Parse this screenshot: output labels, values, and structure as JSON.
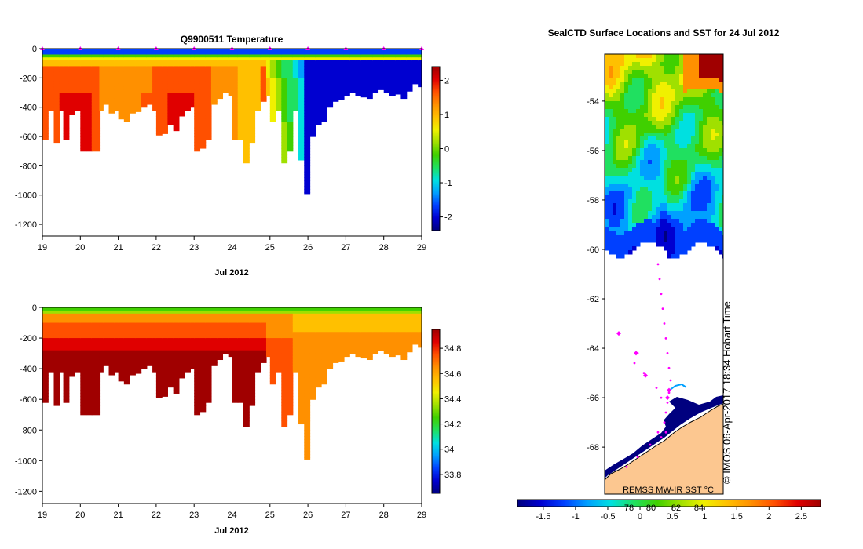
{
  "colors": {
    "scale": [
      "#00007f",
      "#0000d0",
      "#0040ff",
      "#00a0ff",
      "#00e0e0",
      "#20e060",
      "#40d000",
      "#a0e000",
      "#f0f000",
      "#ffc000",
      "#ff9000",
      "#ff5000",
      "#e00000",
      "#a00000"
    ],
    "land": "#fcc790",
    "track": "#ff00ff"
  },
  "chart_data": [
    {
      "type": "heatmap",
      "title": "Q9900511  Temperature",
      "xlabel": "Jul 2012",
      "x_ticks": [
        "19",
        "20",
        "21",
        "22",
        "23",
        "24",
        "25",
        "26",
        "27",
        "28",
        "29"
      ],
      "xlim": [
        19,
        29
      ],
      "ylim": [
        -1280,
        0
      ],
      "y_ticks": [
        "0",
        "-200",
        "-400",
        "-600",
        "-800",
        "-1000",
        "-1200"
      ],
      "colorbar": {
        "ticks": [
          "2",
          "1",
          "0",
          "-1",
          "-2"
        ],
        "range": [
          -2.4,
          2.4
        ]
      },
      "profile_markers_day": [
        19,
        20,
        21,
        22,
        23,
        24,
        25,
        26,
        27,
        28,
        29
      ],
      "profiles": [
        {
          "day": 19.0,
          "depth": 620
        },
        {
          "day": 19.15,
          "depth": 420
        },
        {
          "day": 19.3,
          "depth": 640
        },
        {
          "day": 19.45,
          "depth": 420
        },
        {
          "day": 19.55,
          "depth": 620
        },
        {
          "day": 19.7,
          "depth": 450
        },
        {
          "day": 19.85,
          "depth": 420
        },
        {
          "day": 20.0,
          "depth": 700
        },
        {
          "day": 20.15,
          "depth": 700
        },
        {
          "day": 20.3,
          "depth": 700
        },
        {
          "day": 20.5,
          "depth": 420
        },
        {
          "day": 20.6,
          "depth": 380
        },
        {
          "day": 20.75,
          "depth": 440
        },
        {
          "day": 20.9,
          "depth": 420
        },
        {
          "day": 21.0,
          "depth": 480
        },
        {
          "day": 21.15,
          "depth": 500
        },
        {
          "day": 21.3,
          "depth": 440
        },
        {
          "day": 21.45,
          "depth": 430
        },
        {
          "day": 21.6,
          "depth": 400
        },
        {
          "day": 21.75,
          "depth": 380
        },
        {
          "day": 21.9,
          "depth": 420
        },
        {
          "day": 22.0,
          "depth": 590
        },
        {
          "day": 22.15,
          "depth": 580
        },
        {
          "day": 22.3,
          "depth": 520
        },
        {
          "day": 22.45,
          "depth": 560
        },
        {
          "day": 22.6,
          "depth": 460
        },
        {
          "day": 22.75,
          "depth": 420
        },
        {
          "day": 22.9,
          "depth": 400
        },
        {
          "day": 23.0,
          "depth": 700
        },
        {
          "day": 23.15,
          "depth": 680
        },
        {
          "day": 23.3,
          "depth": 620
        },
        {
          "day": 23.45,
          "depth": 380
        },
        {
          "day": 23.6,
          "depth": 340
        },
        {
          "day": 23.75,
          "depth": 300
        },
        {
          "day": 23.9,
          "depth": 320
        },
        {
          "day": 24.0,
          "depth": 620
        },
        {
          "day": 24.15,
          "depth": 620
        },
        {
          "day": 24.3,
          "depth": 780
        },
        {
          "day": 24.45,
          "depth": 640
        },
        {
          "day": 24.6,
          "depth": 420
        },
        {
          "day": 24.75,
          "depth": 360
        },
        {
          "day": 24.9,
          "depth": 320
        },
        {
          "day": 25.0,
          "depth": 500
        },
        {
          "day": 25.15,
          "depth": 420
        },
        {
          "day": 25.3,
          "depth": 780
        },
        {
          "day": 25.45,
          "depth": 700
        },
        {
          "day": 25.6,
          "depth": 420
        },
        {
          "day": 25.75,
          "depth": 760
        },
        {
          "day": 25.9,
          "depth": 990
        },
        {
          "day": 26.05,
          "depth": 600
        },
        {
          "day": 26.2,
          "depth": 520
        },
        {
          "day": 26.35,
          "depth": 500
        },
        {
          "day": 26.5,
          "depth": 400
        },
        {
          "day": 26.65,
          "depth": 360
        },
        {
          "day": 26.8,
          "depth": 350
        },
        {
          "day": 26.95,
          "depth": 320
        },
        {
          "day": 27.1,
          "depth": 300
        },
        {
          "day": 27.25,
          "depth": 320
        },
        {
          "day": 27.4,
          "depth": 330
        },
        {
          "day": 27.55,
          "depth": 340
        },
        {
          "day": 27.7,
          "depth": 300
        },
        {
          "day": 27.85,
          "depth": 280
        },
        {
          "day": 28.0,
          "depth": 300
        },
        {
          "day": 28.15,
          "depth": 320
        },
        {
          "day": 28.3,
          "depth": 310
        },
        {
          "day": 28.45,
          "depth": 340
        },
        {
          "day": 28.6,
          "depth": 290
        },
        {
          "day": 28.75,
          "depth": 240
        },
        {
          "day": 28.9,
          "depth": 260
        }
      ]
    },
    {
      "type": "heatmap",
      "title": "",
      "xlabel": "Jul 2012",
      "x_ticks": [
        "19",
        "20",
        "21",
        "22",
        "23",
        "24",
        "25",
        "26",
        "27",
        "28",
        "29"
      ],
      "xlim": [
        19,
        29
      ],
      "ylim": [
        -1280,
        0
      ],
      "y_ticks": [
        "0",
        "-200",
        "-400",
        "-600",
        "-800",
        "-1000",
        "-1200"
      ],
      "colorbar": {
        "ticks": [
          "34.8",
          "34.6",
          "34.4",
          "34.2",
          "34",
          "33.8"
        ],
        "range": [
          33.65,
          34.95
        ]
      }
    },
    {
      "type": "heatmap",
      "title": "SealCTD Surface Locations and SST for 24 Jul 2012",
      "y_ticks": [
        "-54",
        "-56",
        "-58",
        "-60",
        "-62",
        "-64",
        "-66",
        "-68"
      ],
      "ylim": [
        -69.9,
        -52.1
      ],
      "colorbar": {
        "ticks": [
          "-1.5",
          "-1",
          "-0.5",
          "0",
          "0.5",
          "1",
          "1.5",
          "2",
          "2.5"
        ],
        "range": [
          -1.9,
          2.8
        ]
      },
      "overlay_labels": [
        "78",
        "80",
        "82",
        "84"
      ],
      "data_source": "REMSS MW-IR SST °C",
      "watermark": "© IMOS 06-Apr-2017 18:34 Hobart Time"
    }
  ]
}
